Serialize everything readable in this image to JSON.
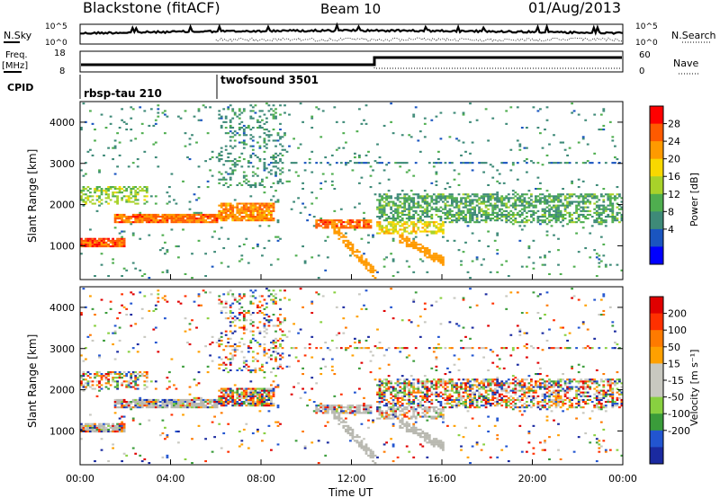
{
  "header": {
    "station": "Blackstone (fitACF)",
    "beam": "Beam 10",
    "date": "01/Aug/2013"
  },
  "summary": {
    "nsky_label": "N.Sky",
    "nsearch_label": "N.Search",
    "freq_label": "Freq.",
    "freq_unit": "[MHz]",
    "nave_label": "Nave",
    "cpid_label": "CPID",
    "noise_ticks": [
      "10^5",
      "10^0"
    ],
    "freq_ticks": [
      "18",
      "8"
    ],
    "nave_ticks": [
      "60",
      "0"
    ],
    "cpid_segments": [
      "rbsp-tau 210",
      "twofsound 3501"
    ]
  },
  "panels": {
    "power_ylabel": "Slant Range [km]",
    "velocity_ylabel": "Slant Range [km]",
    "xlabel": "Time UT",
    "power_colorbar_label": "Power [dB]",
    "velocity_colorbar_label": "Velocity [m s⁻¹]"
  },
  "colors": {
    "power_scale": [
      "#0000ff",
      "#1a55c0",
      "#3e8a78",
      "#4fae4f",
      "#a8d22a",
      "#f8d800",
      "#ff9a00",
      "#ff5a00",
      "#ff0000"
    ],
    "velocity_scale": [
      "#1a2aa0",
      "#2255d0",
      "#3a9c3a",
      "#88d040",
      "#c8c8c0",
      "#c8c8c0",
      "#ffa000",
      "#ff7a00",
      "#ff3000",
      "#e00000"
    ],
    "ground_scatter": "#b8b8b0"
  },
  "chart_data": [
    {
      "type": "heatmap",
      "title": "Power",
      "ylabel": "Slant Range [km]",
      "xlabel": "Time UT",
      "x_ticks": [
        "00:00",
        "04:00",
        "08:00",
        "12:00",
        "16:00",
        "20:00",
        "00:00"
      ],
      "xlim_hours": [
        0,
        24
      ],
      "y_ticks": [
        "1000",
        "2000",
        "3000",
        "4000"
      ],
      "ylim_km": [
        180,
        4500
      ],
      "colorbar_label": "Power [dB]",
      "colorbar_ticks": [
        "28",
        "24",
        "20",
        "16",
        "12",
        "8",
        "4"
      ],
      "clim": [
        0,
        30
      ]
    },
    {
      "type": "heatmap",
      "title": "Velocity",
      "ylabel": "Slant Range [km]",
      "xlabel": "Time UT",
      "x_ticks": [
        "00:00",
        "04:00",
        "08:00",
        "12:00",
        "16:00",
        "20:00",
        "00:00"
      ],
      "xlim_hours": [
        0,
        24
      ],
      "y_ticks": [
        "1000",
        "2000",
        "3000",
        "4000"
      ],
      "ylim_km": [
        180,
        4500
      ],
      "colorbar_label": "Velocity [m s⁻¹]",
      "colorbar_ticks": [
        "200",
        "100",
        "50",
        "15",
        "-15",
        "-50",
        "-100",
        "-200"
      ],
      "clim": [
        -250,
        250
      ]
    }
  ]
}
